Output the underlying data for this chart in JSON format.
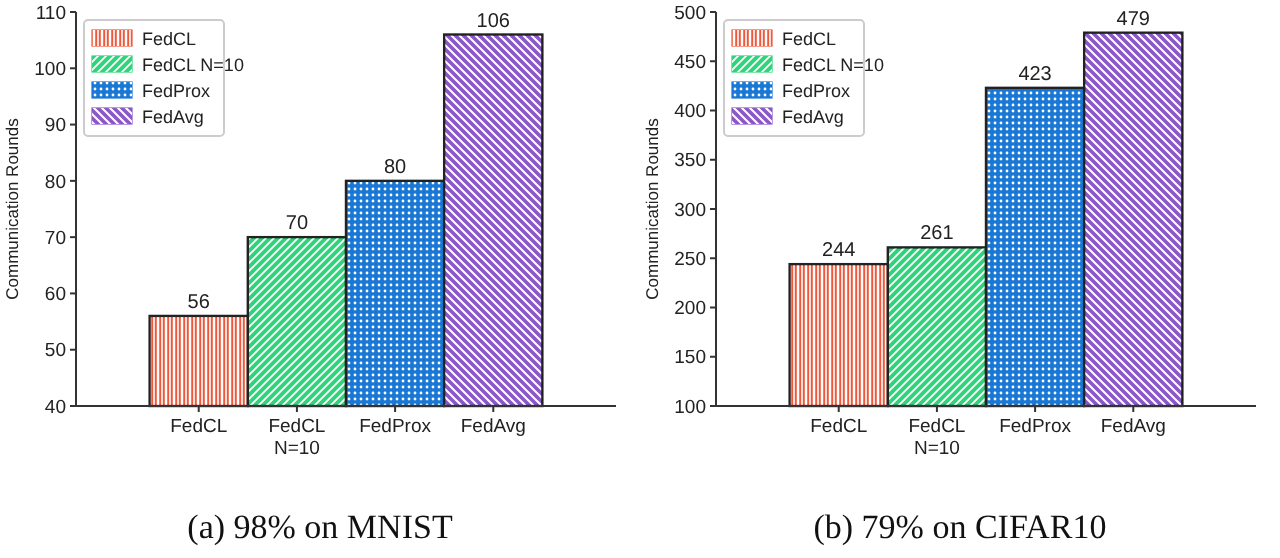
{
  "chart_data": [
    {
      "type": "bar",
      "title": "(a) 98% on MNIST",
      "ylabel": "Communication Rounds",
      "categories": [
        "FedCL",
        "FedCL N=10",
        "FedProx",
        "FedAvg"
      ],
      "series": [
        {
          "name": "FedCL",
          "color": "#f0583c",
          "values": [
            56,
            null,
            null,
            null
          ]
        },
        {
          "name": "FedCL N=10",
          "color": "#2ed47a",
          "values": [
            null,
            70,
            null,
            null
          ]
        },
        {
          "name": "FedProx",
          "color": "#1a78d4",
          "values": [
            null,
            null,
            80,
            null
          ]
        },
        {
          "name": "FedAvg",
          "color": "#8a58c8",
          "values": [
            null,
            null,
            null,
            106
          ]
        }
      ],
      "ylim": [
        40,
        110
      ],
      "yticks": [
        40,
        50,
        60,
        70,
        80,
        90,
        100,
        110
      ],
      "data_labels": true,
      "legend": "top left",
      "grid": false
    },
    {
      "type": "bar",
      "title": "(b) 79% on CIFAR10",
      "ylabel": "Communication Rounds",
      "categories": [
        "FedCL",
        "FedCL N=10",
        "FedProx",
        "FedAvg"
      ],
      "series": [
        {
          "name": "FedCL",
          "color": "#f0583c",
          "values": [
            244,
            null,
            null,
            null
          ]
        },
        {
          "name": "FedCL N=10",
          "color": "#2ed47a",
          "values": [
            null,
            261,
            null,
            null
          ]
        },
        {
          "name": "FedProx",
          "color": "#1a78d4",
          "values": [
            null,
            null,
            423,
            null
          ]
        },
        {
          "name": "FedAvg",
          "color": "#8a58c8",
          "values": [
            null,
            null,
            null,
            479
          ]
        }
      ],
      "ylim": [
        100,
        500
      ],
      "yticks": [
        100,
        150,
        200,
        250,
        300,
        350,
        400,
        450,
        500
      ],
      "data_labels": true,
      "legend": "top left",
      "grid": false
    }
  ]
}
